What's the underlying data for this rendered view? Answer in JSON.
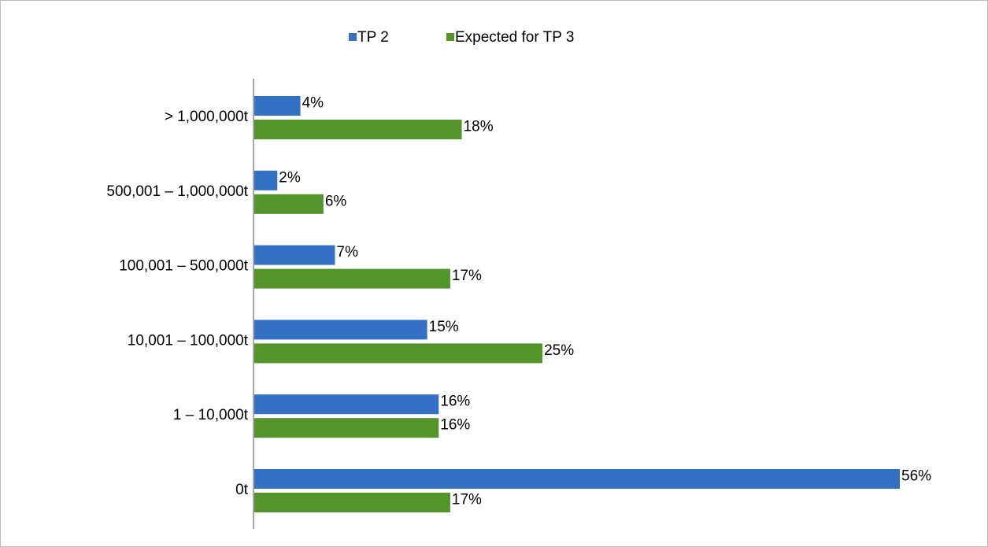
{
  "chart_data": {
    "type": "bar",
    "orientation": "horizontal",
    "categories": [
      "> 1,000,000t",
      "500,001 – 1,000,000t",
      "100,001 – 500,000t",
      "10,001 – 100,000t",
      "1 – 10,000t",
      "0t"
    ],
    "series": [
      {
        "name": "TP 2",
        "color": "#3470c4",
        "values": [
          4,
          2,
          7,
          15,
          16,
          56
        ],
        "value_labels": [
          "4%",
          "2%",
          "7%",
          "15%",
          "16%",
          "56%"
        ]
      },
      {
        "name": "Expected for TP 3",
        "color": "#53952b",
        "values": [
          18,
          6,
          17,
          25,
          16,
          17
        ],
        "value_labels": [
          "18%",
          "6%",
          "17%",
          "25%",
          "16%",
          "17%"
        ]
      }
    ],
    "legend": "top",
    "grid": false
  }
}
